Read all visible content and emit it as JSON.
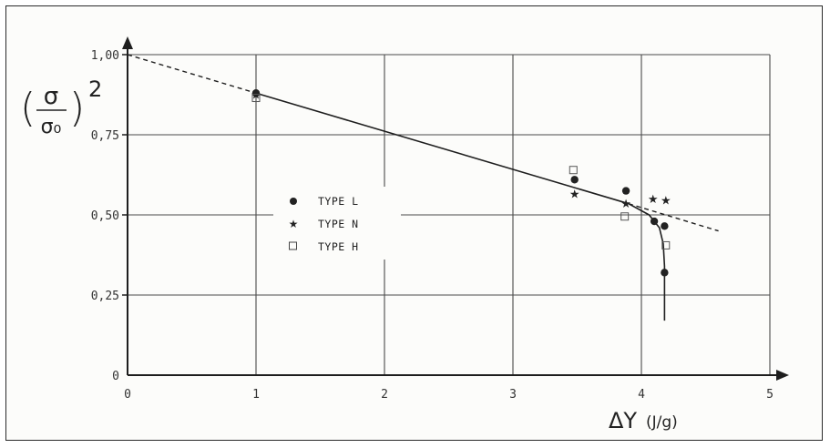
{
  "chart_data": {
    "type": "scatter",
    "title": "",
    "ylabel_base": "σ",
    "ylabel_sub": "σ₀",
    "ylabel_exponent": "2",
    "xlabel_symbol": "ΔY",
    "xlabel_unit": "(J/g)",
    "xlim": [
      0,
      5
    ],
    "ylim": [
      0,
      1
    ],
    "grid": true,
    "x_ticks": [
      "0",
      "1",
      "2",
      "3",
      "4",
      "5"
    ],
    "y_ticks": [
      "0",
      "0,25",
      "0,50",
      "0,75",
      "1,00"
    ],
    "series": [
      {
        "name": "TYPE L",
        "marker": "filled-circle",
        "x": [
          1.0,
          3.48,
          3.88,
          4.1,
          4.18,
          4.18
        ],
        "y": [
          0.88,
          0.61,
          0.575,
          0.48,
          0.465,
          0.32
        ]
      },
      {
        "name": "TYPE N",
        "marker": "star",
        "x": [
          1.0,
          3.48,
          3.88,
          4.09,
          4.19
        ],
        "y": [
          0.875,
          0.565,
          0.535,
          0.55,
          0.545
        ]
      },
      {
        "name": "TYPE H",
        "marker": "open-square",
        "x": [
          1.0,
          3.47,
          3.87,
          4.19
        ],
        "y": [
          0.865,
          0.64,
          0.495,
          0.405
        ]
      }
    ],
    "fit_line_solid": {
      "x": [
        1.0,
        3.9,
        4.06,
        4.14,
        4.17,
        4.18,
        4.18
      ],
      "y": [
        0.88,
        0.535,
        0.5,
        0.46,
        0.41,
        0.34,
        0.17
      ]
    },
    "fit_line_dashed_1": {
      "x": [
        0,
        1.0
      ],
      "y": [
        1.0,
        0.88
      ]
    },
    "fit_line_dashed_2": {
      "x": [
        3.9,
        4.6
      ],
      "y": [
        0.535,
        0.45
      ]
    },
    "legend_placement": "center-left",
    "colors": {
      "ink": "#1e1e1e",
      "grid": "#4a4a4a"
    }
  }
}
